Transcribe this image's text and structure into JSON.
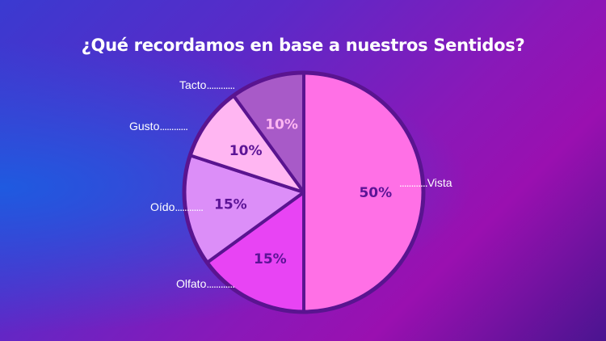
{
  "chart_data": {
    "type": "pie",
    "title": "¿Qué recordamos en base a nuestros Sentidos?",
    "slices": [
      {
        "label": "Vista",
        "value": 50,
        "display": "50%",
        "color": "#ff70e6",
        "text_color": "#5c1496"
      },
      {
        "label": "Olfato",
        "value": 15,
        "display": "15%",
        "color": "#e844f4",
        "text_color": "#5c1496"
      },
      {
        "label": "Oído",
        "value": 15,
        "display": "15%",
        "color": "#dc8ef8",
        "text_color": "#5c1496"
      },
      {
        "label": "Gusto",
        "value": 10,
        "display": "10%",
        "color": "#ffb6f2",
        "text_color": "#5c1496"
      },
      {
        "label": "Tacto",
        "value": 10,
        "display": "10%",
        "color": "#a85ac8",
        "text_color": "#ffb6f2"
      }
    ],
    "border_color": "#5a1490",
    "legend": "none"
  },
  "leader": "............"
}
